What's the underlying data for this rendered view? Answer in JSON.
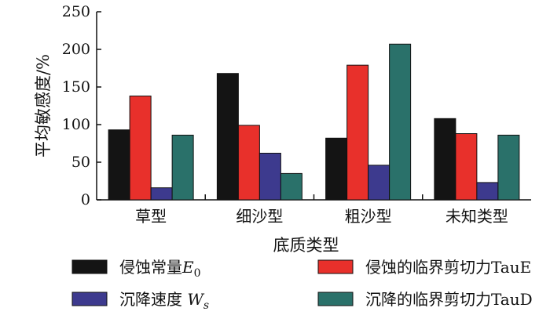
{
  "chart_data": {
    "type": "bar",
    "xlabel": "底质类型",
    "ylabel": "平均敏感度/%",
    "ylim": [
      0,
      250
    ],
    "yticks": [
      0,
      50,
      100,
      150,
      200,
      250
    ],
    "grid": false,
    "legend_position": "bottom",
    "categories": [
      "草型",
      "细沙型",
      "粗沙型",
      "未知类型"
    ],
    "series": [
      {
        "name": "侵蚀常量",
        "symbol": "E",
        "subscript": "0",
        "color": "#141414",
        "values": [
          93,
          168,
          82,
          108
        ]
      },
      {
        "name": "侵蚀的临界剪切力TauE",
        "color": "#e8302b",
        "values": [
          138,
          99,
          179,
          88
        ]
      },
      {
        "name": "沉降速度 ",
        "symbol": "W",
        "subscript": "s",
        "color": "#3d3a8e",
        "values": [
          16,
          62,
          46,
          23
        ]
      },
      {
        "name": "沉降的临界剪切力TauD",
        "color": "#2a716a",
        "values": [
          86,
          35,
          207,
          86
        ]
      }
    ]
  }
}
